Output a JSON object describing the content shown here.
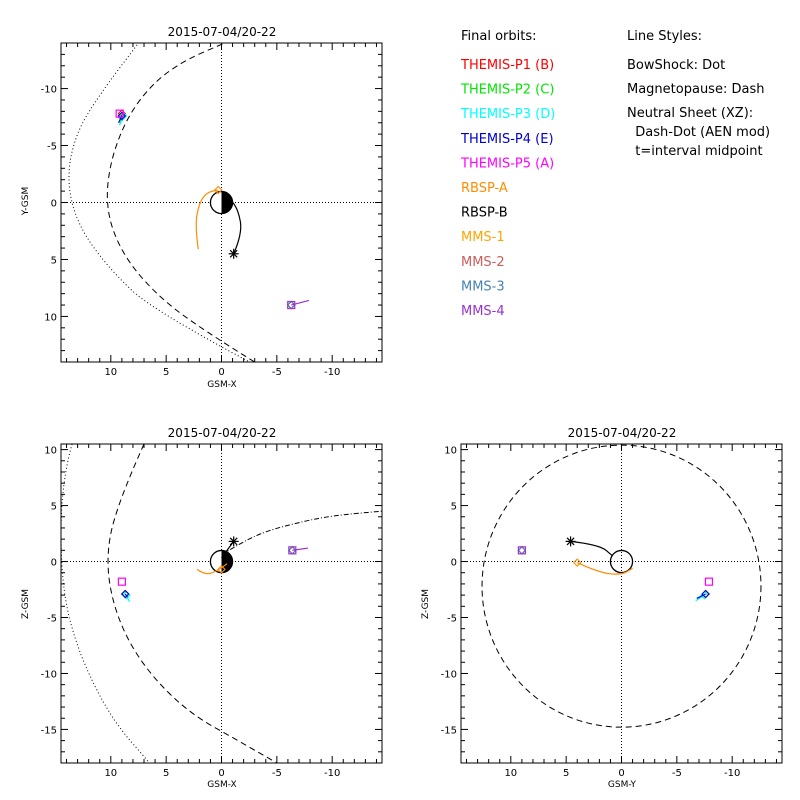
{
  "chart_data": [
    {
      "type": "scatter",
      "title": "2015-07-04/20-22",
      "xlabel": "GSM-X",
      "ylabel": "Y-GSM",
      "xlim": [
        14.5,
        -14.5
      ],
      "ylim": [
        14,
        -14
      ],
      "xticks": [
        10,
        5,
        0,
        -5,
        -10
      ],
      "yticks": [
        -10,
        -5,
        0,
        5,
        10
      ],
      "earth": "half",
      "series": [
        {
          "name": "THEMIS-P1 (B)",
          "color": "#ff0000",
          "points": [
            [
              9.0,
              -7.8
            ]
          ],
          "trace": [
            [
              9.0,
              -7.8
            ],
            [
              9.1,
              -7.0
            ]
          ]
        },
        {
          "name": "THEMIS-P2 (C)",
          "color": "#00e600",
          "points": [
            [
              9.0,
              -7.5
            ]
          ],
          "trace": [
            [
              9.0,
              -7.5
            ],
            [
              9.2,
              -6.8
            ]
          ]
        },
        {
          "name": "THEMIS-P3 (D)",
          "color": "#00ffff",
          "points": [
            [
              8.9,
              -7.6
            ]
          ],
          "trace": [
            [
              8.9,
              -7.6
            ],
            [
              9.2,
              -6.8
            ]
          ]
        },
        {
          "name": "THEMIS-P4 (E)",
          "color": "#0000cc",
          "points": [
            [
              9.0,
              -7.6
            ]
          ],
          "trace": [
            [
              9.0,
              -7.6
            ],
            [
              9.3,
              -7.0
            ]
          ]
        },
        {
          "name": "THEMIS-P5 (A)",
          "color": "#ff00ff",
          "points": [
            [
              9.2,
              -7.8
            ]
          ],
          "marker": "square",
          "trace": []
        },
        {
          "name": "RBSP-A",
          "color": "#ff8c00",
          "points": [
            [
              0.3,
              -1.1
            ]
          ],
          "trace": [
            [
              2.1,
              4.1
            ],
            [
              2.4,
              2.0
            ],
            [
              2.0,
              0.0
            ],
            [
              1.3,
              -0.9
            ],
            [
              0.3,
              -1.1
            ]
          ]
        },
        {
          "name": "RBSP-B",
          "color": "#000000",
          "points": [
            [
              -1.1,
              4.5
            ]
          ],
          "marker": "star",
          "trace": [
            [
              -1.1,
              4.5
            ],
            [
              -1.9,
              2.7
            ],
            [
              -1.5,
              0.6
            ],
            [
              -0.7,
              -0.4
            ],
            [
              -0.3,
              -0.5
            ]
          ]
        },
        {
          "name": "MMS-1",
          "color": "#ffa500",
          "points": [
            [
              -6.3,
              9.0
            ]
          ],
          "trace": []
        },
        {
          "name": "MMS-2",
          "color": "#cd5c5c",
          "points": [
            [
              -6.3,
              9.0
            ]
          ],
          "trace": []
        },
        {
          "name": "MMS-3",
          "color": "#4682b4",
          "points": [
            [
              -6.3,
              9.0
            ]
          ],
          "trace": []
        },
        {
          "name": "MMS-4",
          "color": "#9932cc",
          "points": [
            [
              -6.3,
              9.0
            ]
          ],
          "marker": "square",
          "trace": [
            [
              -6.3,
              9.0
            ],
            [
              -7.9,
              8.6
            ]
          ]
        }
      ],
      "bowshock": [
        [
          -3.5,
          14.5
        ],
        [
          6.0,
          9.6
        ],
        [
          10.0,
          6.0
        ],
        [
          13.0,
          2.0
        ],
        [
          14.0,
          -2.0
        ],
        [
          13.2,
          -6.0
        ],
        [
          11.0,
          -9.5
        ],
        [
          7.5,
          -14.0
        ]
      ],
      "magnetopause": [
        [
          -3.0,
          14.0
        ],
        [
          2.0,
          11.0
        ],
        [
          6.0,
          8.0
        ],
        [
          9.0,
          4.5
        ],
        [
          10.5,
          0.5
        ],
        [
          10.0,
          -4.0
        ],
        [
          8.0,
          -8.5
        ],
        [
          4.5,
          -12.0
        ],
        [
          -1.5,
          -14.5
        ]
      ]
    },
    {
      "type": "scatter",
      "title": "2015-07-04/20-22",
      "xlabel": "GSM-X",
      "ylabel": "Z-GSM",
      "xlim": [
        14.5,
        -14.5
      ],
      "ylim": [
        -18,
        10.5
      ],
      "xticks": [
        10,
        5,
        0,
        -5,
        -10
      ],
      "yticks": [
        -15,
        -10,
        -5,
        0,
        5,
        10
      ],
      "earth": "half",
      "series": [
        {
          "name": "THEMIS-P1 (B)",
          "color": "#ff0000",
          "points": [
            [
              8.7,
              -2.9
            ]
          ],
          "trace": []
        },
        {
          "name": "THEMIS-P2 (C)",
          "color": "#00e600",
          "points": [
            [
              8.6,
              -3.0
            ]
          ],
          "trace": []
        },
        {
          "name": "THEMIS-P3 (D)",
          "color": "#00ffff",
          "points": [
            [
              8.6,
              -3.0
            ]
          ],
          "trace": [
            [
              8.6,
              -3.0
            ],
            [
              8.3,
              -3.6
            ]
          ]
        },
        {
          "name": "THEMIS-P4 (E)",
          "color": "#0000cc",
          "points": [
            [
              8.7,
              -2.9
            ]
          ],
          "trace": [
            [
              8.7,
              -2.9
            ],
            [
              8.5,
              -3.2
            ]
          ]
        },
        {
          "name": "THEMIS-P5 (A)",
          "color": "#ff00ff",
          "points": [
            [
              9.0,
              -1.8
            ]
          ],
          "marker": "square",
          "trace": []
        },
        {
          "name": "RBSP-A",
          "color": "#ff8c00",
          "points": [
            [
              0.0,
              -0.7
            ]
          ],
          "trace": [
            [
              2.2,
              -0.7
            ],
            [
              1.5,
              -1.2
            ],
            [
              0.5,
              -0.9
            ],
            [
              -0.5,
              -0.2
            ]
          ]
        },
        {
          "name": "RBSP-B",
          "color": "#000000",
          "points": [
            [
              -1.1,
              1.8
            ]
          ],
          "marker": "star",
          "trace": [
            [
              -1.1,
              1.8
            ],
            [
              -0.5,
              1.0
            ],
            [
              0.0,
              0.3
            ]
          ]
        },
        {
          "name": "MMS-1",
          "color": "#ffa500",
          "points": [
            [
              -6.4,
              1.0
            ]
          ],
          "trace": []
        },
        {
          "name": "MMS-2",
          "color": "#cd5c5c",
          "points": [
            [
              -6.4,
              1.0
            ]
          ],
          "trace": []
        },
        {
          "name": "MMS-3",
          "color": "#4682b4",
          "points": [
            [
              -6.4,
              1.0
            ]
          ],
          "trace": []
        },
        {
          "name": "MMS-4",
          "color": "#9932cc",
          "points": [
            [
              -6.4,
              1.0
            ]
          ],
          "marker": "square",
          "trace": [
            [
              -6.4,
              1.0
            ],
            [
              -7.8,
              1.2
            ]
          ]
        }
      ],
      "bowshock": [
        [
          13.5,
          10.5
        ],
        [
          14.5,
          7.0
        ],
        [
          14.5,
          -2.0
        ],
        [
          13.0,
          -8.0
        ],
        [
          10.0,
          -14.0
        ],
        [
          6.5,
          -18.0
        ]
      ],
      "magnetopause": [
        [
          7.0,
          10.5
        ],
        [
          9.5,
          5.0
        ],
        [
          10.5,
          0.0
        ],
        [
          9.5,
          -5.0
        ],
        [
          7.0,
          -9.5
        ],
        [
          3.0,
          -13.5
        ],
        [
          -1.5,
          -16.0
        ],
        [
          -5.0,
          -18.0
        ]
      ],
      "neutral_sheet": [
        [
          0.0,
          0.6
        ],
        [
          -2.0,
          1.8
        ],
        [
          -4.0,
          2.7
        ],
        [
          -7.0,
          3.5
        ],
        [
          -10.0,
          4.1
        ],
        [
          -14.5,
          4.5
        ]
      ]
    },
    {
      "type": "scatter",
      "title": "2015-07-04/20-22",
      "xlabel": "GSM-Y",
      "ylabel": "Z-GSM",
      "xlim": [
        14.5,
        -14.5
      ],
      "ylim": [
        -18,
        10.5
      ],
      "xticks": [
        10,
        5,
        0,
        -5,
        -10
      ],
      "yticks": [
        -15,
        -10,
        -5,
        0,
        5,
        10
      ],
      "earth": "circle",
      "series": [
        {
          "name": "THEMIS-P1 (B)",
          "color": "#ff0000",
          "points": [
            [
              -7.6,
              -2.9
            ]
          ],
          "trace": []
        },
        {
          "name": "THEMIS-P2 (C)",
          "color": "#00e600",
          "points": [
            [
              -7.5,
              -3.0
            ]
          ],
          "trace": []
        },
        {
          "name": "THEMIS-P3 (D)",
          "color": "#00ffff",
          "points": [
            [
              -7.5,
              -3.0
            ]
          ],
          "trace": [
            [
              -7.5,
              -3.0
            ],
            [
              -6.7,
              -3.5
            ]
          ]
        },
        {
          "name": "THEMIS-P4 (E)",
          "color": "#0000cc",
          "points": [
            [
              -7.6,
              -2.9
            ]
          ],
          "trace": [
            [
              -7.6,
              -2.9
            ],
            [
              -6.8,
              -3.3
            ]
          ]
        },
        {
          "name": "THEMIS-P5 (A)",
          "color": "#ff00ff",
          "points": [
            [
              -7.9,
              -1.8
            ]
          ],
          "marker": "square",
          "trace": []
        },
        {
          "name": "RBSP-A",
          "color": "#ff8c00",
          "points": [
            [
              4.0,
              -0.1
            ]
          ],
          "trace": [
            [
              4.0,
              -0.1
            ],
            [
              2.0,
              -1.0
            ],
            [
              0.0,
              -1.2
            ],
            [
              -1.0,
              -0.6
            ]
          ]
        },
        {
          "name": "RBSP-B",
          "color": "#000000",
          "points": [
            [
              4.6,
              1.8
            ]
          ],
          "marker": "star",
          "trace": [
            [
              4.6,
              1.8
            ],
            [
              2.0,
              1.5
            ],
            [
              0.8,
              0.5
            ]
          ]
        },
        {
          "name": "MMS-1",
          "color": "#ffa500",
          "points": [
            [
              9.0,
              1.0
            ]
          ],
          "trace": []
        },
        {
          "name": "MMS-2",
          "color": "#cd5c5c",
          "points": [
            [
              9.0,
              1.0
            ]
          ],
          "trace": []
        },
        {
          "name": "MMS-3",
          "color": "#4682b4",
          "points": [
            [
              9.0,
              1.0
            ]
          ],
          "trace": []
        },
        {
          "name": "MMS-4",
          "color": "#9932cc",
          "points": [
            [
              9.0,
              1.0
            ]
          ],
          "marker": "square",
          "trace": []
        }
      ],
      "magnetopause_circle": {
        "cy": -2.2,
        "r": 12.6
      }
    }
  ],
  "legend": {
    "heading": "Final orbits:",
    "entries": [
      {
        "label": "THEMIS-P1 (B)",
        "color": "#ff0000"
      },
      {
        "label": "THEMIS-P2 (C)",
        "color": "#00e600"
      },
      {
        "label": "THEMIS-P3 (D)",
        "color": "#00ffff"
      },
      {
        "label": "THEMIS-P4 (E)",
        "color": "#0000cc"
      },
      {
        "label": "THEMIS-P5 (A)",
        "color": "#ff00ff"
      },
      {
        "label": "RBSP-A",
        "color": "#ff8c00"
      },
      {
        "label": "RBSP-B",
        "color": "#000000"
      },
      {
        "label": "MMS-1",
        "color": "#ffa500"
      },
      {
        "label": "MMS-2",
        "color": "#cd5c5c"
      },
      {
        "label": "MMS-3",
        "color": "#4682b4"
      },
      {
        "label": "MMS-4",
        "color": "#9932cc"
      }
    ]
  },
  "line_styles": {
    "heading": "Line Styles:",
    "lines": [
      "BowShock: Dot",
      "Magnetopause: Dash",
      "Neutral Sheet (XZ):",
      "  Dash-Dot (AEN mod)",
      "  t=interval midpoint"
    ]
  }
}
